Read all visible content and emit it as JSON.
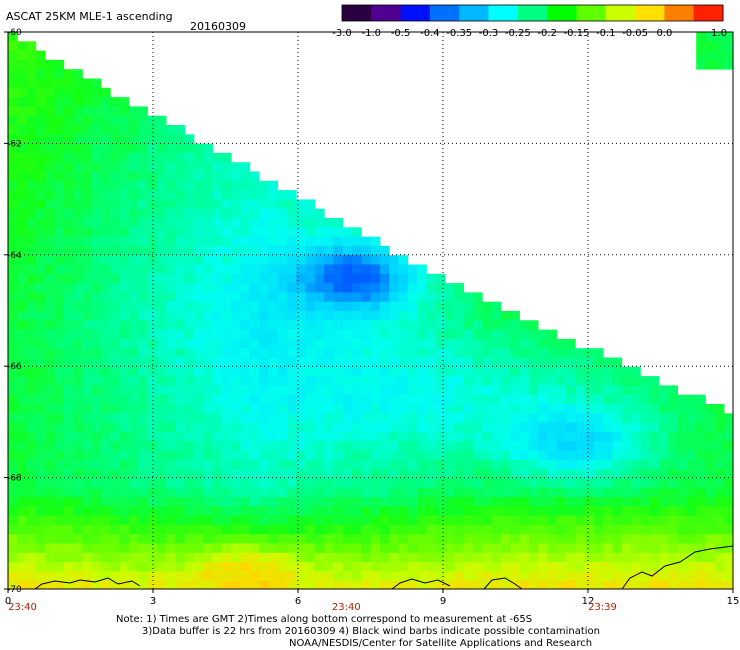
{
  "header": {
    "title": "ASCAT 25KM MLE-1 ascending",
    "date": "20160309"
  },
  "colorbar": {
    "labels": [
      "-3.0",
      "-1.0",
      "-0.5",
      "-0.4",
      "-0.35",
      "-0.3",
      "-0.25",
      "-0.2",
      "-0.15",
      "-0.1",
      "-0.05",
      "0.0",
      "1.0"
    ],
    "colors": [
      "#2a0040",
      "#50008f",
      "#0010ff",
      "#0070ff",
      "#00b8ff",
      "#00ffff",
      "#00ff80",
      "#00ff00",
      "#60ff00",
      "#ccff00",
      "#ffe000",
      "#ff8000",
      "#ff2000"
    ]
  },
  "chart_data": {
    "type": "heatmap",
    "title": "ASCAT 25KM MLE-1 ascending",
    "subtitle": "20160309",
    "x_ticks": [
      "0",
      "3",
      "6",
      "9",
      "12",
      "15"
    ],
    "y_ticks": [
      "-60",
      "-62",
      "-64",
      "-66",
      "-68",
      "-70"
    ],
    "xlim": [
      0,
      15
    ],
    "ylim": [
      -70,
      -60
    ],
    "time_labels": [
      "23:40",
      "23:40",
      "23:39"
    ],
    "grid": true,
    "colorbar_position": "top-right",
    "approximate_regions": [
      {
        "area": "upper-left",
        "value": -0.2
      },
      {
        "area": "center",
        "value": -0.3
      },
      {
        "area": "around x=7, y=-64.5",
        "value": -0.4
      },
      {
        "area": "right-center",
        "value": -0.35
      },
      {
        "area": "bottom",
        "value": -0.1
      },
      {
        "area": "around x=5, y=-69.5",
        "value": -0.05
      }
    ]
  },
  "notes": {
    "line1": "Note: 1) Times are GMT 2)Times along bottom correspond to measurement at -65S",
    "line2": "3)Data buffer is 22 hrs from 20160309 4) Black wind barbs indicate possible contamination",
    "line3": "NOAA/NESDIS/Center for Satellite Applications and Research"
  }
}
